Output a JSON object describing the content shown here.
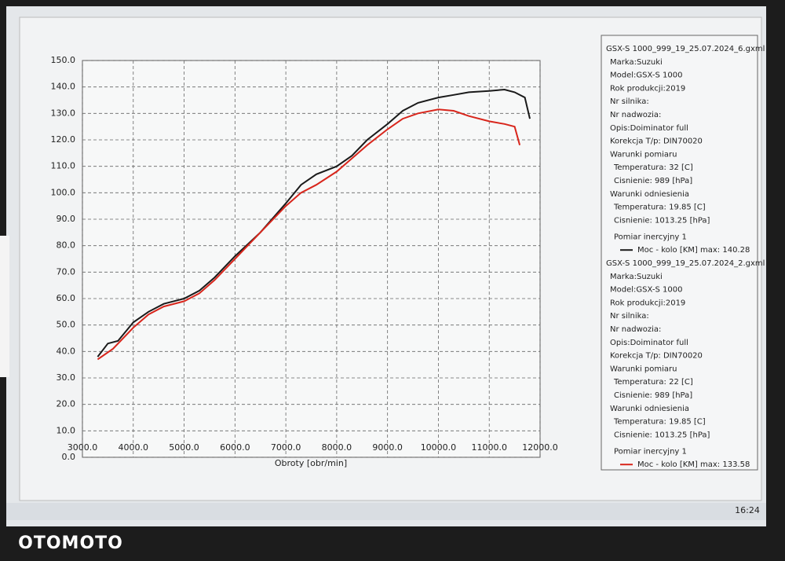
{
  "chart_data": {
    "type": "line",
    "x_label": "Obroty [obr/min]",
    "xlim": [
      3000,
      12000
    ],
    "xticks": [
      {
        "value": 3000,
        "label": "3000.0"
      },
      {
        "value": 4000,
        "label": "4000.0"
      },
      {
        "value": 5000,
        "label": "5000.0"
      },
      {
        "value": 6000,
        "label": "6000.0"
      },
      {
        "value": 7000,
        "label": "7000.0"
      },
      {
        "value": 8000,
        "label": "8000.0"
      },
      {
        "value": 9000,
        "label": "9000.0"
      },
      {
        "value": 10000,
        "label": "10000.0"
      },
      {
        "value": 11000,
        "label": "11000.0"
      },
      {
        "value": 12000,
        "label": "12000.0"
      }
    ],
    "ylim": [
      0,
      150
    ],
    "yticks": [
      {
        "value": 0,
        "label": "0.0"
      },
      {
        "value": 10,
        "label": "10.0"
      },
      {
        "value": 20,
        "label": "20.0"
      },
      {
        "value": 30,
        "label": "30.0"
      },
      {
        "value": 40,
        "label": "40.0"
      },
      {
        "value": 50,
        "label": "50.0"
      },
      {
        "value": 60,
        "label": "60.0"
      },
      {
        "value": 70,
        "label": "70.0"
      },
      {
        "value": 80,
        "label": "80.0"
      },
      {
        "value": 90,
        "label": "90.0"
      },
      {
        "value": 100,
        "label": "100.0"
      },
      {
        "value": 110,
        "label": "110.0"
      },
      {
        "value": 120,
        "label": "120.0"
      },
      {
        "value": 130,
        "label": "130.0"
      },
      {
        "value": 140,
        "label": "140.0"
      },
      {
        "value": 150,
        "label": "150.0"
      }
    ],
    "grid": true,
    "series": [
      {
        "name": "Moc - kolo [KM] max: 140.28",
        "color": "#1a1a1a",
        "x": [
          3300,
          3500,
          3700,
          4000,
          4300,
          4600,
          5000,
          5300,
          5600,
          6000,
          6500,
          7000,
          7300,
          7600,
          8000,
          8300,
          8600,
          9000,
          9300,
          9600,
          10000,
          10300,
          10600,
          11000,
          11300,
          11500,
          11700,
          11800
        ],
        "values": [
          38,
          43,
          44,
          51,
          55,
          58,
          60,
          63,
          68,
          76,
          85,
          96,
          103,
          107,
          110,
          114,
          120,
          126,
          131,
          134,
          136,
          137,
          138,
          138.5,
          139,
          138,
          136,
          128
        ]
      },
      {
        "name": "Moc - kolo [KM] max: 133.58",
        "color": "#d8261c",
        "x": [
          3300,
          3600,
          4000,
          4300,
          4600,
          5000,
          5300,
          5600,
          6000,
          6500,
          7000,
          7300,
          7600,
          8000,
          8300,
          8600,
          9000,
          9300,
          9600,
          10000,
          10300,
          10600,
          11000,
          11300,
          11500,
          11600
        ],
        "values": [
          37,
          41,
          49,
          54,
          57,
          59,
          62,
          67,
          75,
          85,
          95,
          100,
          103,
          108,
          113,
          118,
          124,
          128,
          130,
          131.5,
          131,
          129,
          127,
          126,
          125,
          118
        ]
      }
    ]
  },
  "info_panel": {
    "groups": [
      {
        "lines": [
          "GSX-S 1000_999_19_25.07.2024_6.gxml",
          "Marka:Suzuki",
          "Model:GSX-S 1000",
          "Rok produkcji:2019",
          "Nr silnika:",
          "Nr nadwozia:",
          "Opis:Doiminator full",
          "Korekcja T/p: DIN70020",
          "Warunki pomiaru",
          "Temperatura: 32 [C]",
          "Cisnienie: 989 [hPa]",
          "Warunki odniesienia",
          "Temperatura: 19.85 [C]",
          "Cisnienie: 1013.25 [hPa]",
          "Pomiar inercyjny 1"
        ]
      },
      {
        "lines": [
          "GSX-S 1000_999_19_25.07.2024_2.gxml",
          "Marka:Suzuki",
          "Model:GSX-S 1000",
          "Rok produkcji:2019",
          "Nr silnika:",
          "Nr nadwozia:",
          "Opis:Doiminator full",
          "Korekcja T/p: DIN70020",
          "Warunki pomiaru",
          "Temperatura: 22 [C]",
          "Cisnienie: 989 [hPa]",
          "Warunki odniesienia",
          "Temperatura: 19.85 [C]",
          "Cisnienie: 1013.25 [hPa]",
          "Pomiar inercyjny 1"
        ]
      }
    ]
  },
  "taskbar": {
    "time": "16:24"
  },
  "watermark": "OTOMOTO"
}
